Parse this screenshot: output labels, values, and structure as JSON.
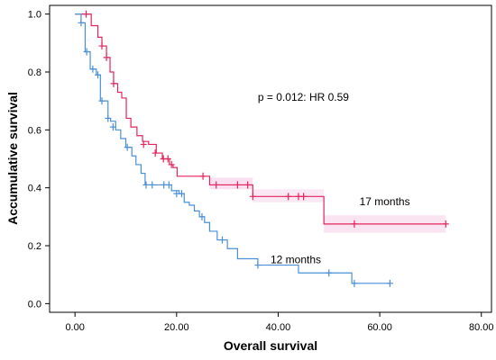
{
  "chart_data": {
    "type": "line",
    "title": "",
    "xlabel": "Overall survival",
    "ylabel": "Accumulative survival",
    "xlim": [
      -5,
      82
    ],
    "ylim": [
      -0.03,
      1.03
    ],
    "x_ticks": [
      0,
      20,
      40,
      60,
      80
    ],
    "x_tick_labels": [
      "0.00",
      "20.00",
      "40.00",
      "60.00",
      "80.00"
    ],
    "y_ticks": [
      0,
      0.2,
      0.4,
      0.6,
      0.8,
      1.0
    ],
    "y_tick_labels": [
      "0.0",
      "0.2",
      "0.4",
      "0.6",
      "0.8",
      "1.0"
    ],
    "grid": false,
    "annotations": [
      {
        "text": "p = 0.012: HR 0.59",
        "x": 36,
        "y": 0.7
      },
      {
        "text": "17 months",
        "x": 56,
        "y": 0.34
      },
      {
        "text": "12 months",
        "x": 38.5,
        "y": 0.14
      }
    ],
    "series": [
      {
        "color": "#e3245c",
        "ci_color": "#f6d2ea",
        "steps": [
          [
            0,
            1.0
          ],
          [
            3.2,
            0.96
          ],
          [
            4.5,
            0.92
          ],
          [
            5.3,
            0.89
          ],
          [
            6.2,
            0.85
          ],
          [
            6.9,
            0.8
          ],
          [
            7.6,
            0.76
          ],
          [
            8.4,
            0.73
          ],
          [
            9.2,
            0.71
          ],
          [
            10.1,
            0.64
          ],
          [
            11.0,
            0.61
          ],
          [
            12.2,
            0.58
          ],
          [
            13.3,
            0.56
          ],
          [
            14.5,
            0.55
          ],
          [
            16.0,
            0.52
          ],
          [
            17.2,
            0.5
          ],
          [
            18.6,
            0.48
          ],
          [
            19.3,
            0.47
          ],
          [
            20.1,
            0.44
          ],
          [
            26.5,
            0.41
          ],
          [
            35.0,
            0.37
          ],
          [
            49.0,
            0.275
          ],
          [
            73.0,
            0.275
          ]
        ],
        "censored": [
          [
            2.2,
            1.0
          ],
          [
            5.3,
            0.89
          ],
          [
            6.2,
            0.85
          ],
          [
            7.6,
            0.76
          ],
          [
            13.5,
            0.55
          ],
          [
            15.8,
            0.52
          ],
          [
            17.4,
            0.5
          ],
          [
            18.3,
            0.5
          ],
          [
            19.0,
            0.48
          ],
          [
            25.2,
            0.44
          ],
          [
            27.8,
            0.41
          ],
          [
            32.0,
            0.41
          ],
          [
            34.0,
            0.41
          ],
          [
            35.0,
            0.37
          ],
          [
            42.0,
            0.37
          ],
          [
            44.0,
            0.37
          ],
          [
            45.0,
            0.37
          ],
          [
            55.0,
            0.275
          ],
          [
            73.0,
            0.275
          ]
        ]
      },
      {
        "color": "#4a90d9",
        "steps": [
          [
            0,
            1.0
          ],
          [
            1.2,
            0.97
          ],
          [
            2.0,
            0.87
          ],
          [
            3.0,
            0.81
          ],
          [
            4.2,
            0.79
          ],
          [
            5.0,
            0.7
          ],
          [
            6.5,
            0.64
          ],
          [
            7.0,
            0.63
          ],
          [
            8.0,
            0.6
          ],
          [
            9.0,
            0.57
          ],
          [
            10.0,
            0.54
          ],
          [
            11.2,
            0.51
          ],
          [
            12.0,
            0.48
          ],
          [
            13.0,
            0.45
          ],
          [
            13.8,
            0.41
          ],
          [
            19.0,
            0.39
          ],
          [
            20.5,
            0.38
          ],
          [
            21.5,
            0.35
          ],
          [
            22.5,
            0.34
          ],
          [
            23.5,
            0.32
          ],
          [
            24.5,
            0.3
          ],
          [
            25.5,
            0.28
          ],
          [
            26.5,
            0.25
          ],
          [
            28.0,
            0.22
          ],
          [
            30.0,
            0.19
          ],
          [
            32.0,
            0.155
          ],
          [
            36.0,
            0.133
          ],
          [
            44.0,
            0.106
          ],
          [
            54.5,
            0.07
          ],
          [
            62.0,
            0.07
          ]
        ],
        "censored": [
          [
            1.2,
            0.97
          ],
          [
            2.3,
            0.87
          ],
          [
            3.5,
            0.81
          ],
          [
            4.5,
            0.79
          ],
          [
            5.3,
            0.7
          ],
          [
            6.5,
            0.64
          ],
          [
            7.5,
            0.61
          ],
          [
            10.3,
            0.54
          ],
          [
            14.0,
            0.41
          ],
          [
            15.2,
            0.41
          ],
          [
            17.5,
            0.41
          ],
          [
            18.5,
            0.41
          ],
          [
            20.0,
            0.38
          ],
          [
            21.0,
            0.38
          ],
          [
            25.0,
            0.3
          ],
          [
            29.0,
            0.22
          ],
          [
            36.0,
            0.133
          ],
          [
            50.0,
            0.106
          ],
          [
            55.0,
            0.07
          ],
          [
            62.0,
            0.07
          ]
        ]
      }
    ]
  }
}
